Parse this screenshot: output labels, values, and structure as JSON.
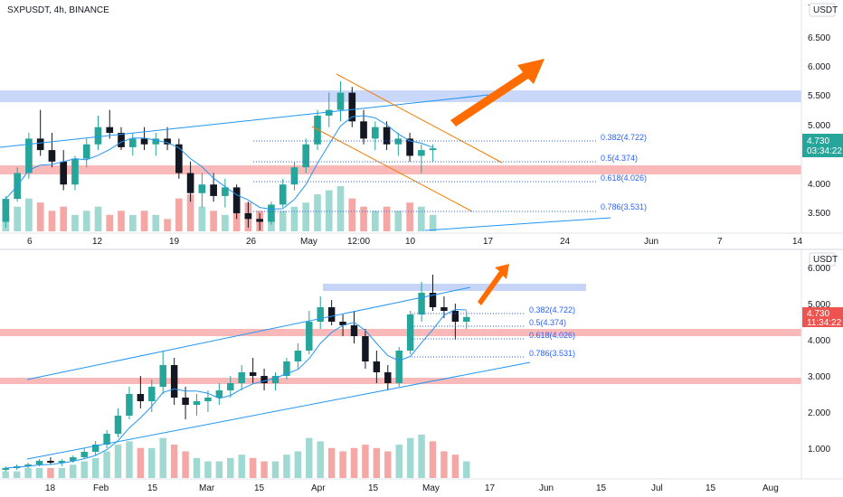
{
  "header": {
    "symbol_line": "SXPUSDT, 4h, BINANCE"
  },
  "chart_data": [
    {
      "type": "candlestick",
      "title": "SXPUSDT, 4h, BINANCE",
      "currency_label": "USDT",
      "y_ticks": [
        "3.500",
        "4.000",
        "4.500",
        "5.000",
        "5.500",
        "6.000",
        "6.500"
      ],
      "y_top_partial": "7",
      "ylim": [
        3.3,
        7.0
      ],
      "x_ticks": [
        "6",
        "12",
        "19",
        "26",
        "May",
        "12:00",
        "10",
        "17",
        "24",
        "Jun",
        "7",
        "14"
      ],
      "last_price": "4.730",
      "countdown": "03:34:22",
      "fib_levels": [
        {
          "label": "0.382(4.722)",
          "value": 4.722
        },
        {
          "label": "0.5(4.374)",
          "value": 4.374
        },
        {
          "label": "0.618(4.026)",
          "value": 4.026
        },
        {
          "label": "0.786(3.531)",
          "value": 3.531
        }
      ],
      "zones": [
        {
          "type": "resistance",
          "from": 5.4,
          "to": 5.58,
          "color": "#b7c9f5"
        },
        {
          "type": "support",
          "from": 4.14,
          "to": 4.28,
          "color": "#f7a7a7"
        }
      ],
      "candles": [
        [
          3.45,
          3.9,
          3.35,
          3.85
        ],
        [
          3.85,
          4.4,
          3.8,
          4.3
        ],
        [
          4.3,
          5.0,
          4.2,
          4.9
        ],
        [
          4.9,
          5.4,
          4.6,
          4.7
        ],
        [
          4.7,
          5.0,
          4.4,
          4.5
        ],
        [
          4.5,
          4.7,
          4.0,
          4.1
        ],
        [
          4.1,
          4.6,
          4.0,
          4.55
        ],
        [
          4.55,
          4.9,
          4.4,
          4.8
        ],
        [
          4.8,
          5.3,
          4.7,
          5.1
        ],
        [
          5.1,
          5.4,
          4.9,
          5.0
        ],
        [
          5.0,
          5.1,
          4.7,
          4.75
        ],
        [
          4.75,
          5.0,
          4.6,
          4.9
        ],
        [
          4.9,
          5.1,
          4.7,
          4.8
        ],
        [
          4.8,
          5.0,
          4.6,
          4.9
        ],
        [
          4.9,
          5.1,
          4.7,
          4.8
        ],
        [
          4.8,
          4.9,
          4.2,
          4.3
        ],
        [
          4.3,
          4.5,
          3.8,
          3.95
        ],
        [
          3.95,
          4.3,
          3.7,
          4.1
        ],
        [
          4.1,
          4.3,
          3.8,
          3.9
        ],
        [
          3.9,
          4.2,
          3.7,
          4.05
        ],
        [
          4.05,
          4.1,
          3.5,
          3.6
        ],
        [
          3.6,
          3.8,
          3.35,
          3.5
        ],
        [
          3.5,
          3.6,
          3.3,
          3.45
        ],
        [
          3.45,
          3.8,
          3.4,
          3.75
        ],
        [
          3.75,
          4.2,
          3.7,
          4.1
        ],
        [
          4.1,
          4.5,
          4.0,
          4.4
        ],
        [
          4.4,
          4.9,
          4.3,
          4.8
        ],
        [
          4.8,
          5.4,
          4.7,
          5.3
        ],
        [
          5.3,
          5.7,
          5.1,
          5.4
        ],
        [
          5.4,
          5.9,
          5.2,
          5.7
        ],
        [
          5.7,
          5.8,
          5.1,
          5.2
        ],
        [
          5.2,
          5.4,
          4.8,
          4.9
        ],
        [
          4.9,
          5.2,
          4.7,
          5.1
        ],
        [
          5.1,
          5.2,
          4.7,
          4.8
        ],
        [
          4.8,
          5.0,
          4.6,
          4.9
        ],
        [
          4.9,
          5.0,
          4.5,
          4.6
        ],
        [
          4.6,
          4.8,
          4.3,
          4.7
        ],
        [
          4.7,
          4.8,
          4.5,
          4.73
        ]
      ],
      "volumes": [
        0.4,
        0.6,
        0.8,
        0.7,
        0.5,
        0.6,
        0.4,
        0.5,
        0.6,
        0.4,
        0.5,
        0.4,
        0.5,
        0.4,
        0.3,
        0.8,
        0.9,
        0.6,
        0.5,
        0.4,
        0.6,
        0.7,
        0.5,
        0.4,
        0.5,
        0.6,
        0.7,
        0.9,
        1.0,
        1.1,
        0.8,
        0.6,
        0.5,
        0.6,
        0.5,
        0.7,
        0.6,
        0.4
      ]
    },
    {
      "type": "candlestick",
      "currency_label": "USDT",
      "y_ticks": [
        "1.000",
        "2.000",
        "3.000",
        "4.000",
        "5.000",
        "6.000"
      ],
      "ylim": [
        0.3,
        6.3
      ],
      "x_ticks": [
        "18",
        "Feb",
        "15",
        "Mar",
        "15",
        "Apr",
        "15",
        "May",
        "17",
        "Jun",
        "15",
        "Jul",
        "15",
        "Aug"
      ],
      "last_price": "4.730",
      "countdown": "11:34:22",
      "fib_levels": [
        {
          "label": "0.382(4.722)",
          "value": 4.722
        },
        {
          "label": "0.5(4.374)",
          "value": 4.374
        },
        {
          "label": "0.618(4.026)",
          "value": 4.026
        },
        {
          "label": "0.786(3.531)",
          "value": 3.531
        }
      ],
      "zones": [
        {
          "type": "resistance",
          "from": 5.35,
          "to": 5.55,
          "color": "#b7c9f5"
        },
        {
          "type": "support",
          "from": 4.12,
          "to": 4.28,
          "color": "#f7a7a7"
        },
        {
          "type": "support",
          "from": 2.82,
          "to": 2.98,
          "color": "#f7a7a7"
        }
      ],
      "candles": [
        [
          0.5,
          0.6,
          0.45,
          0.55
        ],
        [
          0.55,
          0.65,
          0.5,
          0.6
        ],
        [
          0.6,
          0.7,
          0.55,
          0.65
        ],
        [
          0.65,
          0.8,
          0.6,
          0.75
        ],
        [
          0.75,
          0.85,
          0.65,
          0.7
        ],
        [
          0.7,
          0.8,
          0.6,
          0.75
        ],
        [
          0.75,
          0.9,
          0.7,
          0.85
        ],
        [
          0.85,
          1.1,
          0.8,
          1.0
        ],
        [
          1.0,
          1.3,
          0.9,
          1.2
        ],
        [
          1.2,
          1.6,
          1.1,
          1.5
        ],
        [
          1.5,
          2.2,
          1.4,
          2.0
        ],
        [
          2.0,
          2.8,
          1.9,
          2.6
        ],
        [
          2.6,
          3.1,
          2.2,
          2.4
        ],
        [
          2.4,
          3.0,
          2.1,
          2.8
        ],
        [
          2.8,
          3.8,
          2.6,
          3.4
        ],
        [
          3.4,
          3.6,
          2.3,
          2.5
        ],
        [
          2.5,
          2.8,
          1.9,
          2.3
        ],
        [
          2.3,
          2.6,
          2.0,
          2.4
        ],
        [
          2.4,
          2.7,
          2.1,
          2.5
        ],
        [
          2.5,
          2.9,
          2.3,
          2.7
        ],
        [
          2.7,
          3.1,
          2.5,
          2.9
        ],
        [
          2.9,
          3.4,
          2.7,
          3.2
        ],
        [
          3.2,
          3.6,
          2.9,
          3.1
        ],
        [
          3.1,
          3.3,
          2.7,
          2.9
        ],
        [
          2.9,
          3.2,
          2.7,
          3.1
        ],
        [
          3.1,
          3.6,
          3.0,
          3.5
        ],
        [
          3.5,
          4.0,
          3.3,
          3.8
        ],
        [
          3.8,
          4.9,
          3.7,
          4.6
        ],
        [
          4.6,
          5.3,
          4.4,
          5.0
        ],
        [
          5.0,
          5.2,
          4.5,
          4.6
        ],
        [
          4.6,
          4.8,
          4.2,
          4.5
        ],
        [
          4.5,
          4.9,
          4.0,
          4.2
        ],
        [
          4.2,
          4.4,
          3.3,
          3.5
        ],
        [
          3.5,
          3.8,
          2.9,
          3.2
        ],
        [
          3.2,
          3.4,
          2.7,
          2.9
        ],
        [
          2.9,
          3.9,
          2.8,
          3.8
        ],
        [
          3.8,
          4.9,
          3.7,
          4.8
        ],
        [
          4.8,
          5.7,
          4.6,
          5.4
        ],
        [
          5.4,
          5.9,
          4.9,
          5.0
        ],
        [
          5.0,
          5.3,
          4.7,
          4.9
        ],
        [
          4.9,
          5.1,
          4.1,
          4.6
        ],
        [
          4.6,
          4.9,
          4.4,
          4.73
        ]
      ],
      "volumes": [
        0.2,
        0.2,
        0.3,
        0.3,
        0.3,
        0.3,
        0.4,
        0.5,
        0.6,
        0.8,
        1.0,
        1.1,
        0.9,
        0.9,
        1.2,
        1.0,
        0.8,
        0.6,
        0.5,
        0.5,
        0.6,
        0.7,
        0.6,
        0.5,
        0.5,
        0.7,
        0.8,
        1.2,
        1.1,
        0.9,
        0.8,
        0.9,
        1.0,
        0.9,
        0.8,
        1.0,
        1.2,
        1.3,
        1.1,
        0.8,
        0.7,
        0.5
      ]
    }
  ],
  "colors": {
    "up": "#26a69a",
    "down": "#131722",
    "ma": "#2196f3",
    "trend": "#2196f3",
    "channel": "#f57c00",
    "arrow": "#ff6d00",
    "price_badge_top": "#26a69a",
    "price_badge_bottom": "#ef5350"
  }
}
